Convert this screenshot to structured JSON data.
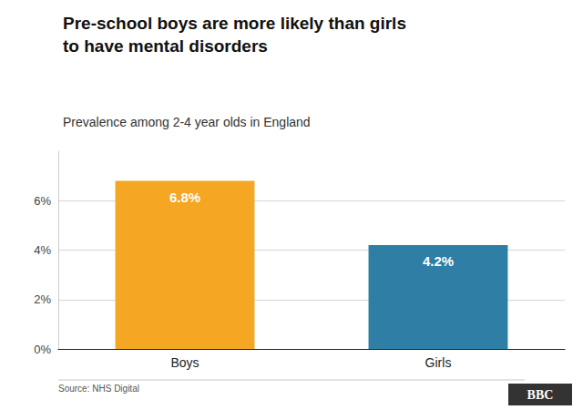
{
  "chart_data": {
    "type": "bar",
    "title": "Pre-school boys are more likely than girls\nto have mental disorders",
    "subtitle": "Prevalence among 2-4 year olds in England",
    "categories": [
      "Boys",
      "Girls"
    ],
    "values": [
      6.8,
      4.2
    ],
    "value_labels": [
      "6.8%",
      "4.2%"
    ],
    "data_labels": true,
    "colors": [
      "#F5A623",
      "#2E7EA6"
    ],
    "ylim": [
      0,
      8
    ],
    "yticks": [
      {
        "value": 0,
        "label": "0%"
      },
      {
        "value": 2,
        "label": "2%"
      },
      {
        "value": 4,
        "label": "4%"
      },
      {
        "value": 6,
        "label": "6%"
      }
    ],
    "grid": true,
    "annotations": [
      "Source: NHS Digital",
      "BBC"
    ]
  }
}
